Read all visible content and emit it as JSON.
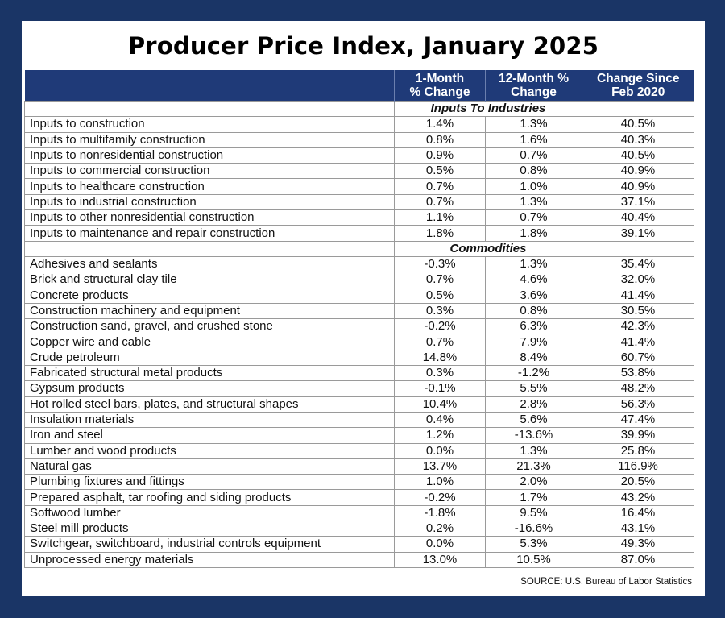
{
  "title": "Producer Price Index, January 2025",
  "headers": {
    "item": "",
    "one_month_line1": "1-Month",
    "one_month_line2": "% Change",
    "twelve_month_line1": "12-Month %",
    "twelve_month_line2": "Change",
    "since_line1": "Change Since",
    "since_line2": "Feb 2020"
  },
  "sections": [
    {
      "name": "Inputs To Industries",
      "rows": [
        {
          "label": "Inputs to construction",
          "m1": "1.4%",
          "m12": "1.3%",
          "since": "40.5%"
        },
        {
          "label": "Inputs to multifamily construction",
          "m1": "0.8%",
          "m12": "1.6%",
          "since": "40.3%"
        },
        {
          "label": "Inputs to nonresidential construction",
          "m1": "0.9%",
          "m12": "0.7%",
          "since": "40.5%"
        },
        {
          "label": "Inputs to commercial construction",
          "m1": "0.5%",
          "m12": "0.8%",
          "since": "40.9%"
        },
        {
          "label": "Inputs to healthcare construction",
          "m1": "0.7%",
          "m12": "1.0%",
          "since": "40.9%"
        },
        {
          "label": "Inputs to industrial construction",
          "m1": "0.7%",
          "m12": "1.3%",
          "since": "37.1%"
        },
        {
          "label": "Inputs to other nonresidential construction",
          "m1": "1.1%",
          "m12": "0.7%",
          "since": "40.4%"
        },
        {
          "label": "Inputs to maintenance and repair construction",
          "m1": "1.8%",
          "m12": "1.8%",
          "since": "39.1%"
        }
      ]
    },
    {
      "name": "Commodities",
      "rows": [
        {
          "label": "Adhesives and sealants",
          "m1": "-0.3%",
          "m12": "1.3%",
          "since": "35.4%"
        },
        {
          "label": "Brick and structural clay tile",
          "m1": "0.7%",
          "m12": "4.6%",
          "since": "32.0%"
        },
        {
          "label": "Concrete products",
          "m1": "0.5%",
          "m12": "3.6%",
          "since": "41.4%"
        },
        {
          "label": "Construction machinery and equipment",
          "m1": "0.3%",
          "m12": "0.8%",
          "since": "30.5%"
        },
        {
          "label": "Construction sand, gravel, and crushed stone",
          "m1": "-0.2%",
          "m12": "6.3%",
          "since": "42.3%"
        },
        {
          "label": "Copper wire and cable",
          "m1": "0.7%",
          "m12": "7.9%",
          "since": "41.4%"
        },
        {
          "label": "Crude petroleum",
          "m1": "14.8%",
          "m12": "8.4%",
          "since": "60.7%"
        },
        {
          "label": "Fabricated structural metal products",
          "m1": "0.3%",
          "m12": "-1.2%",
          "since": "53.8%"
        },
        {
          "label": "Gypsum products",
          "m1": "-0.1%",
          "m12": "5.5%",
          "since": "48.2%"
        },
        {
          "label": "Hot rolled steel bars, plates, and structural shapes",
          "m1": "10.4%",
          "m12": "2.8%",
          "since": "56.3%"
        },
        {
          "label": "Insulation materials",
          "m1": "0.4%",
          "m12": "5.6%",
          "since": "47.4%"
        },
        {
          "label": "Iron and steel",
          "m1": "1.2%",
          "m12": "-13.6%",
          "since": "39.9%"
        },
        {
          "label": "Lumber and wood products",
          "m1": "0.0%",
          "m12": "1.3%",
          "since": "25.8%"
        },
        {
          "label": "Natural gas",
          "m1": "13.7%",
          "m12": "21.3%",
          "since": "116.9%"
        },
        {
          "label": "Plumbing fixtures and fittings",
          "m1": "1.0%",
          "m12": "2.0%",
          "since": "20.5%"
        },
        {
          "label": "Prepared asphalt, tar roofing and siding products",
          "m1": "-0.2%",
          "m12": "1.7%",
          "since": "43.2%"
        },
        {
          "label": "Softwood lumber",
          "m1": "-1.8%",
          "m12": "9.5%",
          "since": "16.4%"
        },
        {
          "label": "Steel mill products",
          "m1": "0.2%",
          "m12": "-16.6%",
          "since": "43.1%"
        },
        {
          "label": "Switchgear, switchboard, industrial controls equipment",
          "m1": "0.0%",
          "m12": "5.3%",
          "since": "49.3%"
        },
        {
          "label": "Unprocessed energy materials",
          "m1": "13.0%",
          "m12": "10.5%",
          "since": "87.0%"
        }
      ]
    }
  ],
  "source": "SOURCE: U.S. Bureau of Labor Statistics",
  "colors": {
    "frame": "#1a3566",
    "header_bg": "#1f3a78",
    "header_text": "#ffffff"
  }
}
